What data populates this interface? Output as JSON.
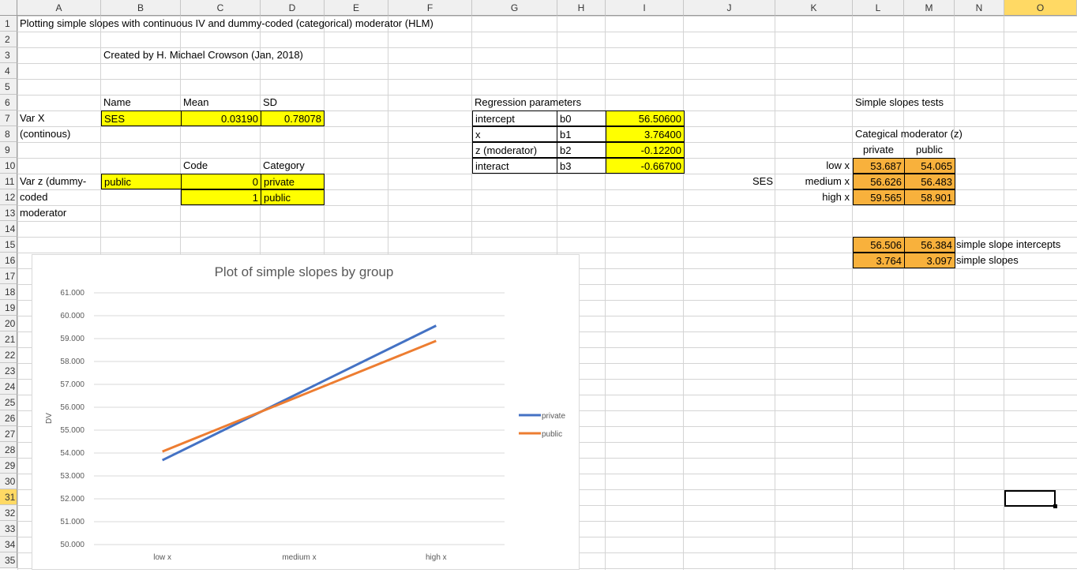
{
  "columns": [
    "A",
    "B",
    "C",
    "D",
    "E",
    "F",
    "G",
    "H",
    "I",
    "J",
    "K",
    "L",
    "M",
    "N",
    "O"
  ],
  "rows": [
    "1",
    "2",
    "3",
    "4",
    "5",
    "6",
    "7",
    "8",
    "9",
    "10",
    "11",
    "12",
    "13",
    "14",
    "15",
    "16",
    "17",
    "18",
    "19",
    "20",
    "21",
    "22",
    "23",
    "24",
    "25",
    "26",
    "27",
    "28",
    "29",
    "30",
    "31",
    "32",
    "33",
    "34",
    "35"
  ],
  "cells": {
    "title": "Plotting simple slopes with continuous IV and dummy-coded (categorical) moderator (HLM)",
    "created_by": "Created by H. Michael Crowson (Jan, 2018)",
    "name_hdr": "Name",
    "mean_hdr": "Mean",
    "sd_hdr": "SD",
    "varx_label": "Var X",
    "varx_sub": "(continous)",
    "varx_name": "SES",
    "varx_mean": "0.03190",
    "varx_sd": "0.78078",
    "code_hdr": "Code",
    "category_hdr": "Category",
    "varz_label1": "Var z (dummy-",
    "varz_label2": "coded",
    "varz_label3": "moderator",
    "varz_name": "public",
    "code0": "0",
    "cat0": "private",
    "code1": "1",
    "cat1": "public",
    "reg_hdr": "Regression parameters",
    "reg": [
      {
        "label": "intercept",
        "param": "b0",
        "value": "56.50600"
      },
      {
        "label": "x",
        "param": "b1",
        "value": "3.76400"
      },
      {
        "label": "z (moderator)",
        "param": "b2",
        "value": "-0.12200"
      },
      {
        "label": "interact",
        "param": "b3",
        "value": "-0.66700"
      }
    ],
    "ss_hdr": "Simple slopes tests",
    "ss_mod": "Categical moderator (z)",
    "ss_col1": "private",
    "ss_col2": "public",
    "ss_ses": "SES",
    "ss_rows": [
      {
        "label": "low x",
        "private": "53.687",
        "public": "54.065"
      },
      {
        "label": "medium x",
        "private": "56.626",
        "public": "56.483"
      },
      {
        "label": "high x",
        "private": "59.565",
        "public": "58.901"
      }
    ],
    "intercepts": {
      "private": "56.506",
      "public": "56.384",
      "label": "simple slope intercepts"
    },
    "slopes": {
      "private": "3.764",
      "public": "3.097",
      "label": "simple slopes"
    }
  },
  "chart_data": {
    "type": "line",
    "title": "Plot of simple slopes by group",
    "ylabel": "DV",
    "xlabel": "",
    "categories": [
      "low x",
      "medium x",
      "high x"
    ],
    "ylim": [
      50,
      61
    ],
    "yticks": [
      "50.000",
      "51.000",
      "52.000",
      "53.000",
      "54.000",
      "55.000",
      "56.000",
      "57.000",
      "58.000",
      "59.000",
      "60.000",
      "61.000"
    ],
    "grid": true,
    "legend": "right",
    "series": [
      {
        "name": "private",
        "values": [
          53.687,
          56.626,
          59.565
        ],
        "color": "#4472c4"
      },
      {
        "name": "public",
        "values": [
          54.065,
          56.483,
          58.901
        ],
        "color": "#ed7d31"
      }
    ]
  }
}
